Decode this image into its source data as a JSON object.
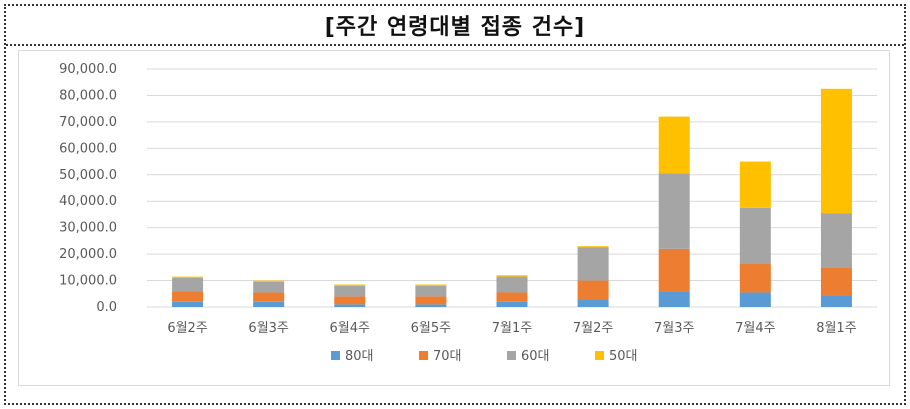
{
  "title": "[주간 연령대별 접종 건수]",
  "chart_data": {
    "type": "bar",
    "stacked": true,
    "title": "",
    "xlabel": "",
    "ylabel": "",
    "categories": [
      "6월2주",
      "6월3주",
      "6월4주",
      "6월5주",
      "7월1주",
      "7월2주",
      "7월3주",
      "7월4주",
      "8월1주"
    ],
    "series": [
      {
        "name": "80대",
        "color": "#5B9BD5",
        "values": [
          2000,
          2000,
          1000,
          1000,
          2000,
          3000,
          6000,
          5500,
          4500
        ]
      },
      {
        "name": "70대",
        "color": "#ED7D31",
        "values": [
          4000,
          3500,
          3000,
          3000,
          3500,
          7000,
          16000,
          11000,
          10500
        ]
      },
      {
        "name": "60대",
        "color": "#A5A5A5",
        "values": [
          5000,
          4000,
          4000,
          4000,
          6000,
          12500,
          28500,
          21000,
          20500
        ]
      },
      {
        "name": "50대",
        "color": "#FFC000",
        "values": [
          500,
          500,
          500,
          500,
          500,
          500,
          21500,
          17500,
          47000
        ]
      }
    ],
    "ylim": [
      0,
      90000
    ],
    "yticks": [
      "0.0",
      "10,000.0",
      "20,000.0",
      "30,000.0",
      "40,000.0",
      "50,000.0",
      "60,000.0",
      "70,000.0",
      "80,000.0",
      "90,000.0"
    ],
    "grid": true,
    "legend": "bottom"
  }
}
